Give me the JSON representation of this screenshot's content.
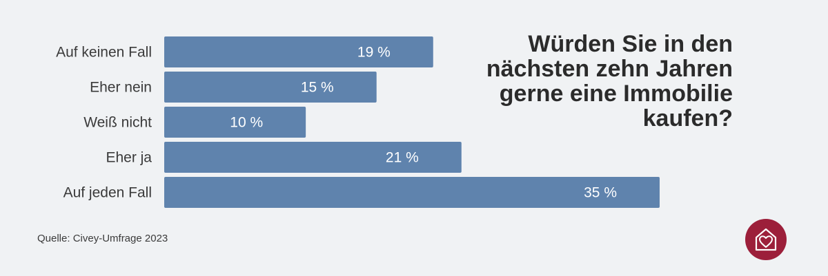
{
  "title": "Würden Sie in den nächsten zehn Jahren gerne eine Immobilie kaufen?",
  "source": "Quelle: Civey-Umfrage 2023",
  "logo_icon": "house-heart-icon",
  "colors": {
    "bar": "#5f83ad",
    "background": "#f0f2f4",
    "logo": "#9c1f3a"
  },
  "chart_data": {
    "type": "bar",
    "orientation": "horizontal",
    "categories": [
      "Auf keinen Fall",
      "Eher nein",
      "Weiß nicht",
      "Eher ja",
      "Auf jeden Fall"
    ],
    "values": [
      19,
      15,
      10,
      21,
      35
    ],
    "value_labels": [
      "19 %",
      "15 %",
      "10 %",
      "21 %",
      "35 %"
    ],
    "unit": "%",
    "xlim": [
      0,
      35
    ],
    "grid": false,
    "legend": "none"
  }
}
